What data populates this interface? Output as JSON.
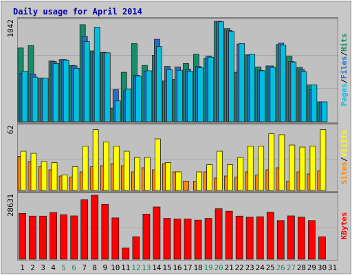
{
  "chart_data": {
    "type": "bar",
    "title": "Daily usage for April 2014",
    "categories": [
      "1",
      "2",
      "3",
      "4",
      "5",
      "6",
      "7",
      "8",
      "9",
      "10",
      "11",
      "12",
      "13",
      "14",
      "15",
      "16",
      "17",
      "18",
      "19",
      "20",
      "21",
      "22",
      "23",
      "24",
      "25",
      "26",
      "27",
      "28",
      "29",
      "30",
      "31"
    ],
    "weekend_days": [
      "5",
      "6",
      "12",
      "13",
      "19",
      "20",
      "26",
      "27"
    ],
    "panels": [
      {
        "id": "pages-files-hits",
        "max_label": "1042",
        "ymax": 1042,
        "label_parts": [
          "Pages",
          "/",
          "Files",
          "/",
          "Hits"
        ],
        "label_colors": [
          "#00c0e0",
          "#000000",
          "#2a6cc8",
          "#000000",
          "#1a8a6a"
        ],
        "series": [
          {
            "name": "Hits",
            "color": "#1a8a6a",
            "values": [
              760,
              785,
              450,
              625,
              640,
              580,
              1000,
              730,
              715,
              140,
              510,
              805,
              580,
              685,
              420,
              435,
              600,
              695,
              655,
              1035,
              960,
              510,
              690,
              565,
              575,
              795,
              675,
              560,
              380,
              205,
              0
            ]
          },
          {
            "name": "Files",
            "color": "#2a6cc8",
            "values": [
              500,
              490,
              450,
              620,
              640,
              575,
              880,
              710,
              710,
              330,
              320,
              480,
              520,
              850,
              570,
              565,
              540,
              570,
              675,
              1035,
              940,
              800,
              685,
              530,
              575,
              810,
              620,
              535,
              330,
              205,
              0
            ]
          },
          {
            "name": "Pages",
            "color": "#00c0e0",
            "values": [
              520,
              460,
              450,
              600,
              635,
              550,
              825,
              975,
              710,
              215,
              335,
              470,
              525,
              775,
              535,
              530,
              520,
              555,
              665,
              1030,
              930,
              805,
              695,
              525,
              560,
              790,
              615,
              515,
              380,
              205,
              0
            ]
          }
        ]
      },
      {
        "id": "sites-visits",
        "max_label": "62",
        "ymax": 62,
        "label_parts": [
          "Sites",
          "/",
          "Visits"
        ],
        "label_colors": [
          "#ff8800",
          "#000000",
          "#ffff00"
        ],
        "series": [
          {
            "name": "Sites",
            "color": "#ff8800",
            "values": [
              33,
              28,
              23,
              20,
              14,
              13,
              18,
              23,
              24,
              26,
              24,
              18,
              22,
              20,
              26,
              18,
              9,
              9,
              18,
              12,
              14,
              13,
              18,
              15,
              20,
              22,
              9,
              18,
              16,
              19,
              0
            ]
          },
          {
            "name": "Visits",
            "color": "#ffff00",
            "values": [
              38,
              36,
              28,
              27,
              15,
              23,
              43,
              59,
              47,
              43,
              38,
              32,
              32,
              50,
              27,
              18,
              0,
              18,
              25,
              38,
              25,
              32,
              43,
              43,
              55,
              54,
              44,
              42,
              43,
              59,
              0
            ]
          }
        ]
      },
      {
        "id": "kbytes",
        "max_label": "28631",
        "ymax": 28631,
        "label_parts": [
          "KBytes"
        ],
        "label_colors": [
          "#ff0000"
        ],
        "series": [
          {
            "name": "KBytes",
            "color": "#ff0000",
            "values": [
              20500,
              19300,
              19300,
              20900,
              19900,
              19400,
              26600,
              28631,
              24500,
              18500,
              5000,
              10000,
              20200,
              23400,
              18300,
              18000,
              18000,
              17500,
              18300,
              22600,
              21500,
              19300,
              18800,
              19000,
              21100,
              17300,
              19400,
              18800,
              17300,
              10000,
              0
            ]
          }
        ]
      }
    ]
  }
}
